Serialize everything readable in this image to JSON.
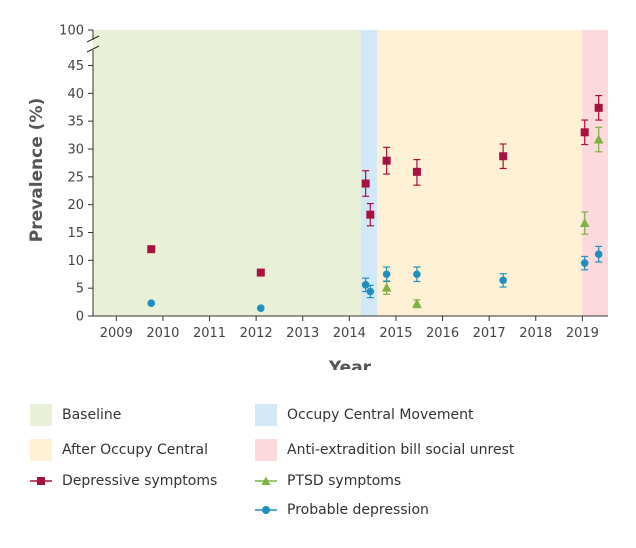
{
  "chart_data": {
    "type": "scatter",
    "xlabel": "Year",
    "ylabel": "Prevalence (%)",
    "xlim": [
      2008.5,
      2019.55
    ],
    "ylim_lower": [
      0,
      47
    ],
    "y_break_top_tick": 100,
    "x_ticks": [
      2009,
      2010,
      2011,
      2012,
      2013,
      2014,
      2015,
      2016,
      2017,
      2018,
      2019
    ],
    "y_ticks": [
      0,
      5,
      10,
      15,
      20,
      25,
      30,
      35,
      40,
      45
    ],
    "y_top_label": "100",
    "periods": [
      {
        "name": "Baseline",
        "start": 2008.5,
        "end": 2014.25,
        "color": "#e8f1d8"
      },
      {
        "name": "Occupy Central Movement",
        "start": 2014.25,
        "end": 2014.6,
        "color": "#d3e8f6"
      },
      {
        "name": "After Occupy Central",
        "start": 2014.6,
        "end": 2019.0,
        "color": "#fdf0d5"
      },
      {
        "name": "Anti-extradition bill social unrest",
        "start": 2019.0,
        "end": 2019.55,
        "color": "#fbd9dc"
      }
    ],
    "series": [
      {
        "name": "Depressive symptoms",
        "marker": "square",
        "color": "#a8123e",
        "points": [
          {
            "x": 2009.75,
            "y": 12.0,
            "lo": 11.6,
            "hi": 12.4
          },
          {
            "x": 2012.1,
            "y": 7.8,
            "lo": 7.4,
            "hi": 8.2
          },
          {
            "x": 2014.35,
            "y": 23.8,
            "lo": 21.5,
            "hi": 26.1
          },
          {
            "x": 2014.45,
            "y": 18.2,
            "lo": 16.2,
            "hi": 20.2
          },
          {
            "x": 2014.8,
            "y": 27.9,
            "lo": 25.5,
            "hi": 30.3
          },
          {
            "x": 2015.45,
            "y": 25.9,
            "lo": 23.5,
            "hi": 28.1
          },
          {
            "x": 2017.3,
            "y": 28.7,
            "lo": 26.5,
            "hi": 30.9
          },
          {
            "x": 2019.05,
            "y": 33.0,
            "lo": 30.8,
            "hi": 35.2
          },
          {
            "x": 2019.35,
            "y": 37.4,
            "lo": 35.2,
            "hi": 39.6
          }
        ]
      },
      {
        "name": "PTSD symptoms",
        "marker": "triangle",
        "color": "#7cb342",
        "points": [
          {
            "x": 2014.8,
            "y": 5.1,
            "lo": 3.9,
            "hi": 6.3
          },
          {
            "x": 2015.45,
            "y": 2.2,
            "lo": 1.5,
            "hi": 2.9
          },
          {
            "x": 2019.05,
            "y": 16.7,
            "lo": 14.7,
            "hi": 18.7
          },
          {
            "x": 2019.35,
            "y": 31.7,
            "lo": 29.5,
            "hi": 33.9
          }
        ]
      },
      {
        "name": "Probable depression",
        "marker": "circle",
        "color": "#1f8fc0",
        "points": [
          {
            "x": 2009.75,
            "y": 2.3,
            "lo": 2.1,
            "hi": 2.5
          },
          {
            "x": 2012.1,
            "y": 1.4,
            "lo": 1.2,
            "hi": 1.6
          },
          {
            "x": 2014.35,
            "y": 5.6,
            "lo": 4.4,
            "hi": 6.8
          },
          {
            "x": 2014.45,
            "y": 4.4,
            "lo": 3.3,
            "hi": 5.5
          },
          {
            "x": 2014.8,
            "y": 7.5,
            "lo": 6.2,
            "hi": 8.8
          },
          {
            "x": 2015.45,
            "y": 7.5,
            "lo": 6.2,
            "hi": 8.8
          },
          {
            "x": 2017.3,
            "y": 6.4,
            "lo": 5.2,
            "hi": 7.6
          },
          {
            "x": 2019.05,
            "y": 9.5,
            "lo": 8.3,
            "hi": 10.7
          },
          {
            "x": 2019.35,
            "y": 11.1,
            "lo": 9.7,
            "hi": 12.5
          }
        ]
      }
    ]
  },
  "legend": {
    "baseline": "Baseline",
    "occupy": "Occupy Central Movement",
    "after": "After Occupy Central",
    "antiext": "Anti-extradition bill social unrest",
    "depressive": "Depressive symptoms",
    "ptsd": "PTSD symptoms",
    "probable": "Probable depression"
  }
}
